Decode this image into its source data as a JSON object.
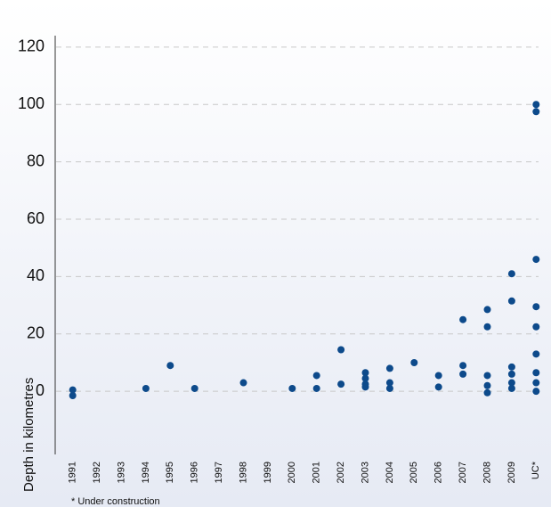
{
  "chart_data": {
    "type": "scatter",
    "y_label": "Depth in kilometres",
    "footnote": "* Under construction",
    "categories": [
      "1991",
      "1992",
      "1993",
      "1994",
      "1995",
      "1996",
      "1997",
      "1998",
      "1999",
      "2000",
      "2001",
      "2002",
      "2003",
      "2004",
      "2005",
      "2006",
      "2007",
      "2008",
      "2009",
      "UC*"
    ],
    "series": [
      {
        "color": "#0d4a8b",
        "x": [
          "1991",
          "1991",
          "1994",
          "1995",
          "1996",
          "1998",
          "2000",
          "2001",
          "2001",
          "2002",
          "2002",
          "2003",
          "2003",
          "2003",
          "2003",
          "2004",
          "2004",
          "2004",
          "2005",
          "2006",
          "2006",
          "2007",
          "2007",
          "2007",
          "2008",
          "2008",
          "2008",
          "2008",
          "2008",
          "2009",
          "2009",
          "2009",
          "2009",
          "2009",
          "2009",
          "UC*",
          "UC*",
          "UC*",
          "UC*",
          "UC*",
          "UC*",
          "UC*",
          "UC*",
          "UC*"
        ],
        "values": [
          0.5,
          -1.5,
          1,
          9,
          1,
          3,
          1,
          5.5,
          1,
          14.5,
          2.5,
          6.5,
          4.5,
          2.5,
          1.5,
          8,
          3,
          1,
          10,
          5.5,
          1.5,
          25,
          9,
          6,
          28.5,
          22.5,
          5.5,
          2,
          -0.5,
          41,
          31.5,
          8.5,
          6,
          3,
          1,
          100,
          97.5,
          46,
          29.5,
          22.5,
          13,
          6.5,
          3,
          0
        ]
      }
    ],
    "ylim": [
      -22,
      124
    ],
    "yticks": [
      0,
      20,
      40,
      60,
      80,
      100,
      120
    ],
    "grid": true
  }
}
